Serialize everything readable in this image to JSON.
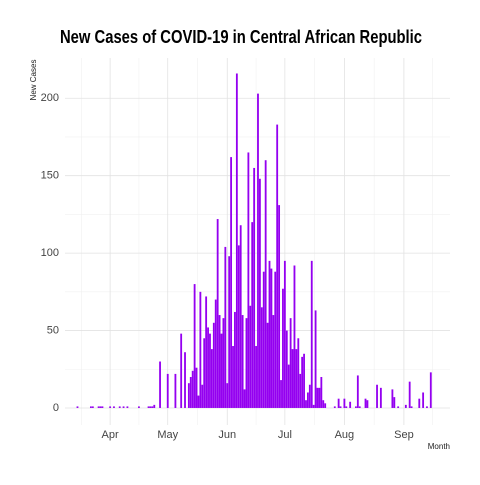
{
  "chart_data": {
    "type": "bar",
    "title": "New Cases of COVID-19 in Central African Republic",
    "x_label": "Month",
    "y_label": "New Cases",
    "color": "#9400f0",
    "grid": true,
    "xlim": [
      8.5,
      209
    ],
    "ylim": [
      -11,
      226
    ],
    "xticks": [
      {
        "value": 32,
        "label": "Apr"
      },
      {
        "value": 62,
        "label": "May"
      },
      {
        "value": 93,
        "label": "Jun"
      },
      {
        "value": 123,
        "label": "Jul"
      },
      {
        "value": 154,
        "label": "Aug"
      },
      {
        "value": 185,
        "label": "Sep"
      }
    ],
    "xminor": [
      17,
      47,
      77.5,
      108,
      138.5,
      169.5,
      200
    ],
    "yticks": [
      0,
      50,
      100,
      150,
      200
    ],
    "yminor": [
      25,
      75,
      125,
      175
    ],
    "x": [
      15,
      22,
      23,
      26,
      27,
      28,
      32,
      34,
      37,
      39,
      41,
      47,
      52,
      53,
      54,
      55,
      58,
      62,
      66,
      69,
      71,
      73,
      74,
      75,
      76,
      77,
      78,
      79,
      80,
      81,
      82,
      83,
      84,
      85,
      86,
      87,
      88,
      89,
      90,
      91,
      92,
      93,
      94,
      95,
      96,
      97,
      98,
      99,
      100,
      101,
      102,
      103,
      104,
      105,
      106,
      107,
      108,
      109,
      110,
      111,
      112,
      113,
      114,
      115,
      116,
      117,
      118,
      119,
      120,
      121,
      122,
      123,
      124,
      125,
      126,
      127,
      128,
      129,
      130,
      131,
      132,
      133,
      134,
      135,
      136,
      137,
      138,
      139,
      140,
      141,
      142,
      143,
      144,
      149,
      151,
      152,
      154,
      155,
      157,
      160,
      161,
      162,
      165,
      166,
      171,
      173,
      179,
      180,
      182,
      186,
      188,
      189,
      193,
      195,
      197,
      199
    ],
    "values": [
      1,
      1,
      1,
      1,
      1,
      1,
      1,
      1,
      1,
      1,
      1,
      1,
      1,
      1,
      1,
      2,
      30,
      22,
      22,
      48,
      36,
      16,
      20,
      24,
      80,
      26,
      8,
      75,
      15,
      45,
      72,
      52,
      48,
      38,
      55,
      70,
      122,
      60,
      48,
      58,
      104,
      16,
      98,
      162,
      40,
      62,
      216,
      105,
      118,
      60,
      12,
      58,
      165,
      66,
      120,
      155,
      40,
      203,
      148,
      65,
      88,
      160,
      55,
      95,
      90,
      60,
      88,
      183,
      131,
      18,
      77,
      95,
      50,
      28,
      58,
      38,
      92,
      38,
      45,
      22,
      33,
      35,
      5,
      10,
      15,
      95,
      2,
      63,
      13,
      13,
      20,
      5,
      3,
      1,
      6,
      1,
      6,
      1,
      4,
      1,
      21,
      1,
      6,
      5,
      15,
      13,
      12,
      7,
      1,
      2,
      17,
      1,
      6,
      10,
      1,
      23
    ]
  }
}
